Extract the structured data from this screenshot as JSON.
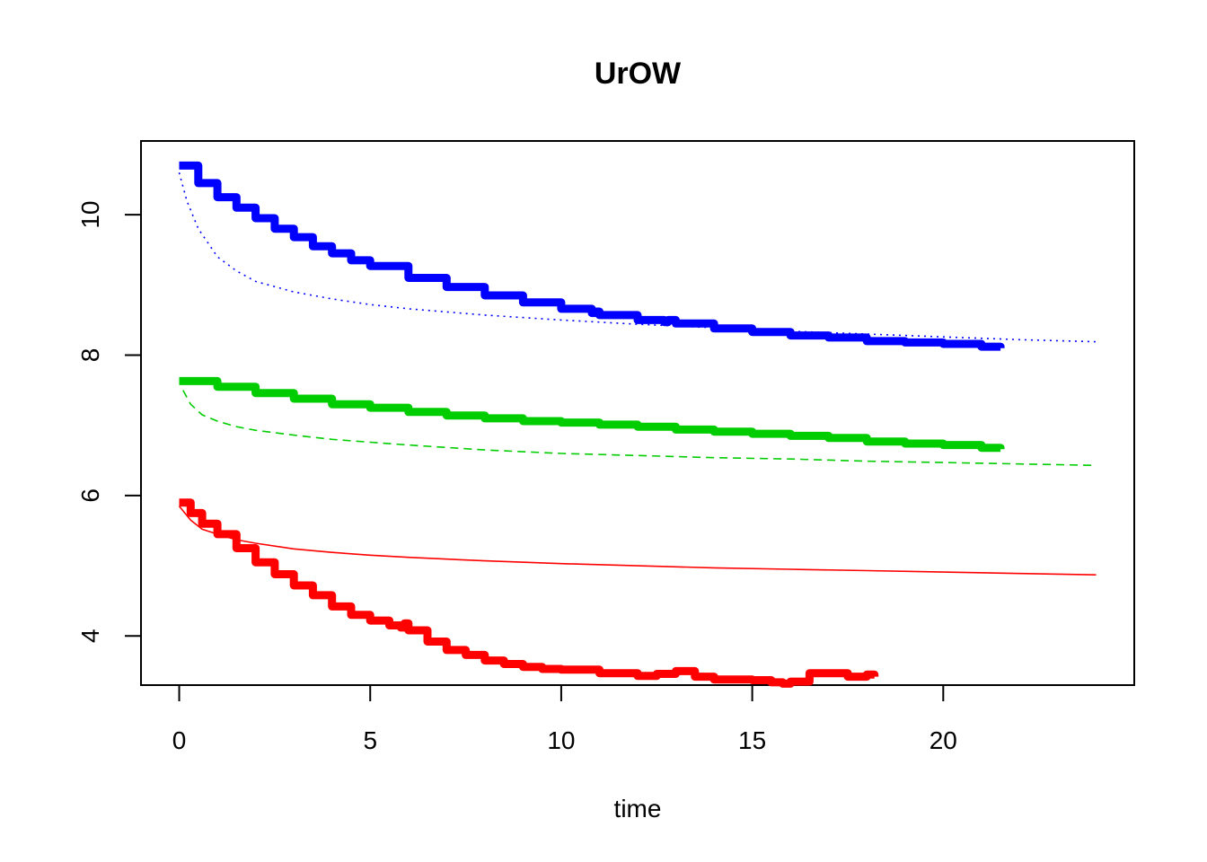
{
  "chart_data": {
    "type": "line",
    "title": "UrOW",
    "xlabel": "time",
    "ylabel": "",
    "xlim": [
      -1,
      25
    ],
    "ylim": [
      3.3,
      11.05
    ],
    "xticks": [
      0,
      5,
      10,
      15,
      20
    ],
    "yticks": [
      4,
      6,
      8,
      10
    ],
    "x_tick_labels": [
      "0",
      "5",
      "10",
      "15",
      "20"
    ],
    "y_tick_labels": [
      "4",
      "6",
      "8",
      "10"
    ],
    "grid": false,
    "legend": "none",
    "series": [
      {
        "style": "thick-step",
        "color": "#0000FF",
        "x": [
          0,
          0.5,
          1,
          1.5,
          2,
          2.5,
          3,
          3.5,
          4,
          4.5,
          5,
          6,
          7,
          8,
          9,
          10,
          10.8,
          10.9,
          11,
          12,
          12.7,
          12.8,
          13,
          14,
          15,
          16,
          17,
          18,
          19,
          20,
          21,
          21.5
        ],
        "y": [
          10.7,
          10.45,
          10.25,
          10.1,
          9.95,
          9.8,
          9.68,
          9.55,
          9.45,
          9.35,
          9.27,
          9.1,
          8.97,
          8.85,
          8.75,
          8.66,
          8.6,
          8.62,
          8.57,
          8.5,
          8.47,
          8.5,
          8.45,
          8.38,
          8.33,
          8.28,
          8.25,
          8.2,
          8.18,
          8.16,
          8.12,
          8.1
        ]
      },
      {
        "style": "thin-dotted",
        "color": "#0000FF",
        "x": [
          0,
          0.2,
          0.5,
          1,
          1.5,
          2,
          3,
          4,
          5,
          6,
          8,
          10,
          12,
          14,
          16,
          18,
          20,
          22,
          24
        ],
        "y": [
          10.6,
          10.2,
          9.8,
          9.4,
          9.2,
          9.05,
          8.9,
          8.8,
          8.72,
          8.66,
          8.57,
          8.5,
          8.44,
          8.39,
          8.34,
          8.3,
          8.26,
          8.22,
          8.19
        ]
      },
      {
        "style": "thick-step",
        "color": "#00CD00",
        "x": [
          0,
          1,
          2,
          3,
          4,
          5,
          6,
          7,
          8,
          9,
          10,
          11,
          12,
          13,
          14,
          15,
          16,
          17,
          18,
          19,
          20,
          21,
          21.5
        ],
        "y": [
          7.63,
          7.55,
          7.46,
          7.38,
          7.3,
          7.25,
          7.19,
          7.14,
          7.1,
          7.06,
          7.04,
          7.01,
          6.98,
          6.94,
          6.91,
          6.88,
          6.85,
          6.82,
          6.77,
          6.74,
          6.72,
          6.68,
          6.66
        ]
      },
      {
        "style": "thin-dashed",
        "color": "#00CD00",
        "x": [
          0.1,
          0.3,
          0.6,
          1,
          1.5,
          2,
          3,
          4,
          5,
          6,
          8,
          10,
          12,
          14,
          16,
          18,
          20,
          22,
          24
        ],
        "y": [
          7.5,
          7.3,
          7.15,
          7.06,
          6.98,
          6.93,
          6.86,
          6.8,
          6.76,
          6.72,
          6.65,
          6.6,
          6.57,
          6.54,
          6.52,
          6.49,
          6.47,
          6.45,
          6.43
        ]
      },
      {
        "style": "thick-step",
        "color": "#FF0000",
        "x": [
          0,
          0.3,
          0.6,
          1,
          1.5,
          2,
          2.5,
          3,
          3.5,
          4,
          4.5,
          5,
          5.5,
          5.8,
          5.9,
          6,
          6.5,
          7,
          7.5,
          8,
          8.5,
          9,
          9.5,
          10,
          11,
          12,
          12.5,
          13,
          13.5,
          14,
          14.5,
          15,
          15.5,
          15.8,
          16,
          16.5,
          17,
          17.5,
          18,
          18.2
        ],
        "y": [
          5.9,
          5.75,
          5.6,
          5.45,
          5.25,
          5.05,
          4.88,
          4.72,
          4.58,
          4.42,
          4.3,
          4.22,
          4.15,
          4.12,
          4.18,
          4.08,
          3.92,
          3.8,
          3.73,
          3.65,
          3.6,
          3.56,
          3.53,
          3.52,
          3.47,
          3.43,
          3.46,
          3.5,
          3.42,
          3.38,
          3.38,
          3.37,
          3.34,
          3.32,
          3.35,
          3.47,
          3.47,
          3.42,
          3.45,
          3.42
        ]
      },
      {
        "style": "thin-solid",
        "color": "#FF0000",
        "x": [
          0,
          0.3,
          0.6,
          1,
          1.5,
          2,
          3,
          4,
          5,
          6,
          8,
          10,
          12,
          14,
          16,
          18,
          20,
          22,
          24
        ],
        "y": [
          5.85,
          5.65,
          5.52,
          5.45,
          5.37,
          5.32,
          5.24,
          5.19,
          5.15,
          5.12,
          5.07,
          5.03,
          5.0,
          4.97,
          4.95,
          4.93,
          4.91,
          4.89,
          4.87
        ]
      }
    ]
  }
}
